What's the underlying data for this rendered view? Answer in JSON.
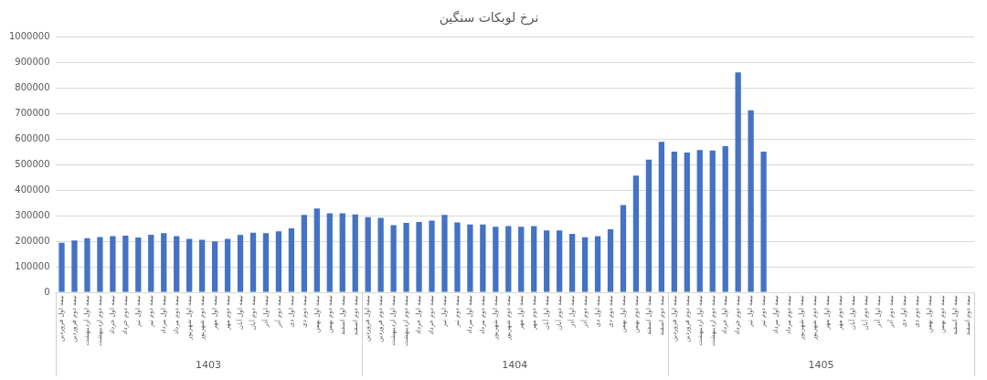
{
  "chart_data": {
    "type": "bar",
    "title": "نرخ لوبکات سنگین",
    "categories": [
      "نیمه اول فروردین",
      "نیمه دوم فروردین",
      "نیمه اول اردیبهشت",
      "نیمه دوم اردیبهشت",
      "نیمه اول خرداد",
      "نیمه دوم خرداد",
      "نیمه اول تیر",
      "نیمه دوم تیر",
      "نیمه اول مرداد",
      "نیمه دوم مرداد",
      "نیمه اول شهریور",
      "نیمه دوم شهریور",
      "نیمه اول مهر",
      "نیمه دوم مهر",
      "نیمه اول آبان",
      "نیمه دوم آبان",
      "نیمه اول آذر",
      "نیمه دوم آذر",
      "نیمه اول دی",
      "نیمه دوم دی",
      "نیمه اول بهمن",
      "نیمه دوم بهمن",
      "نیمه اول اسفند",
      "نیمه دوم اسفند",
      "نیمه اول فروردین",
      "نیمه دوم فروردین",
      "نیمه اول اردیبهشت",
      "نیمه دوم اردیبهشت",
      "نیمه اول خرداد",
      "نیمه دوم خرداد",
      "نیمه اول تیر",
      "نیمه دوم تیر",
      "نیمه اول مرداد",
      "نیمه دوم مرداد",
      "نیمه اول شهریور",
      "نیمه دوم شهریور",
      "نیمه اول مهر",
      "نیمه دوم مهر",
      "نیمه اول آبان",
      "نیمه دوم آبان",
      "نیمه اول آذر",
      "نیمه دوم آذر",
      "نیمه اول دی",
      "نیمه دوم دی",
      "نیمه اول بهمن",
      "نیمه دوم بهمن",
      "نیمه اول اسفند",
      "نیمه دوم اسفند",
      "نیمه اول فروردین",
      "نیمه دوم فروردین",
      "نیمه اول اردیبهشت",
      "نیمه دوم اردیبهشت",
      "نیمه اول خرداد",
      "نیمه دوم خرداد",
      "نیمه اول تیر",
      "نیمه دوم تیر",
      "نیمه اول مرداد",
      "نیمه دوم مرداد",
      "نیمه اول شهریور",
      "نیمه دوم شهریور",
      "نیمه اول مهر",
      "نیمه دوم مهر",
      "نیمه اول آبان",
      "نیمه دوم آبان",
      "نیمه اول آذر",
      "نیمه دوم آذر",
      "نیمه اول دی",
      "نیمه دوم دی",
      "نیمه اول بهمن",
      "نیمه دوم بهمن",
      "نیمه اول اسفند",
      "نیمه دوم اسفند"
    ],
    "values": [
      194000,
      203000,
      212000,
      217000,
      220000,
      222000,
      215000,
      226000,
      232000,
      220000,
      210000,
      206000,
      200000,
      210000,
      225000,
      234000,
      232000,
      239000,
      251000,
      304000,
      329000,
      310000,
      310000,
      305000,
      295000,
      292000,
      263000,
      272000,
      276000,
      281000,
      304000,
      274000,
      266000,
      266000,
      257000,
      260000,
      257000,
      260000,
      243000,
      243000,
      229000,
      216000,
      220000,
      247000,
      342000,
      458000,
      520000,
      590000,
      552000,
      548000,
      558000,
      556000,
      573000,
      862000,
      714000,
      552000,
      null,
      null,
      null,
      null,
      null,
      null,
      null,
      null,
      null,
      null,
      null,
      null,
      null,
      null,
      null,
      null
    ],
    "color": "#4472c4",
    "ylim": [
      0,
      1000000
    ],
    "yticks": [
      0,
      100000,
      200000,
      300000,
      400000,
      500000,
      600000,
      700000,
      800000,
      900000,
      1000000
    ],
    "grid": "y",
    "annotations": [
      "1403",
      "1404",
      "1405"
    ]
  }
}
